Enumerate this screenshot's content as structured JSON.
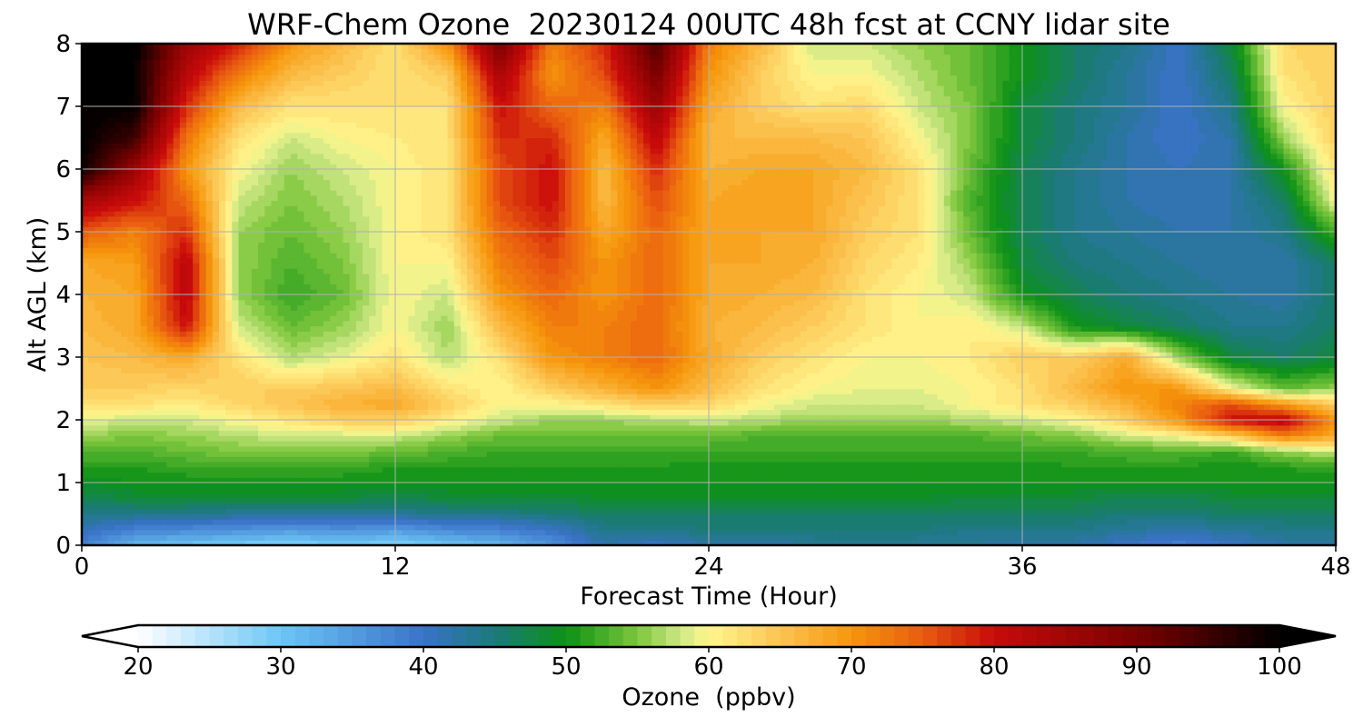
{
  "chart_data": {
    "type": "heatmap",
    "style": "filled-contour",
    "title": "WRF-Chem Ozone  20230124 00UTC 48h fcst at CCNY lidar site",
    "xlabel": "Forecast Time (Hour)",
    "ylabel": "Alt AGL (km)",
    "xlim": [
      0,
      48
    ],
    "ylim": [
      0,
      8
    ],
    "x_ticks": [
      0,
      12,
      24,
      36,
      48
    ],
    "y_ticks": [
      0,
      1,
      2,
      3,
      4,
      5,
      6,
      7,
      8
    ],
    "grid": true,
    "x_hours": [
      0,
      2,
      4,
      6,
      8,
      10,
      12,
      14,
      16,
      18,
      20,
      22,
      24,
      26,
      28,
      30,
      32,
      34,
      36,
      38,
      40,
      42,
      44,
      46,
      48
    ],
    "z_km": [
      0,
      0.25,
      0.5,
      0.75,
      1,
      1.25,
      1.5,
      1.75,
      2,
      2.25,
      2.5,
      3,
      3.5,
      4,
      4.5,
      5,
      5.5,
      6,
      6.5,
      7,
      7.5,
      8
    ],
    "ozone_ppbv": [
      [
        38,
        32,
        30,
        29,
        28,
        30,
        28,
        30,
        32,
        36,
        42,
        40,
        42,
        42,
        43,
        43,
        43,
        43,
        42,
        42,
        40,
        38,
        40,
        42,
        42
      ],
      [
        41,
        38,
        37,
        36,
        35,
        36,
        35,
        37,
        38,
        40,
        44,
        44,
        45,
        45,
        45,
        45,
        45,
        44,
        44,
        44,
        43,
        42,
        43,
        44,
        44
      ],
      [
        44,
        44,
        44,
        43,
        43,
        43,
        43,
        44,
        44,
        45,
        46,
        46,
        46,
        46,
        46,
        46,
        46,
        46,
        46,
        46,
        45,
        45,
        46,
        46,
        46
      ],
      [
        47,
        48,
        48,
        48,
        48,
        48,
        47,
        48,
        48,
        48,
        49,
        49,
        49,
        49,
        49,
        49,
        49,
        48,
        48,
        48,
        47,
        47,
        48,
        48,
        48
      ],
      [
        49,
        50,
        50,
        50,
        50,
        50,
        50,
        50,
        50,
        50,
        50,
        50,
        50,
        50,
        50,
        50,
        50,
        50,
        50,
        50,
        50,
        50,
        50,
        50,
        50
      ],
      [
        51,
        51,
        52,
        52,
        52,
        52,
        51,
        51,
        51,
        51,
        51,
        51,
        50,
        50,
        50,
        50,
        50,
        50,
        50,
        51,
        51,
        51,
        50,
        51,
        52
      ],
      [
        53,
        53,
        54,
        55,
        55,
        55,
        54,
        53,
        52,
        52,
        52,
        52,
        52,
        52,
        52,
        52,
        52,
        52,
        52,
        52,
        53,
        53,
        52,
        56,
        58
      ],
      [
        56,
        55,
        56,
        57,
        58,
        58,
        58,
        56,
        54,
        54,
        54,
        54,
        54,
        53,
        53,
        53,
        53,
        53,
        54,
        55,
        58,
        60,
        64,
        72,
        68
      ],
      [
        59,
        58,
        58,
        60,
        62,
        64,
        64,
        61,
        58,
        56,
        56,
        57,
        58,
        57,
        56,
        56,
        56,
        57,
        58,
        60,
        64,
        70,
        80,
        82,
        70
      ],
      [
        62,
        62,
        61,
        63,
        65,
        67,
        68,
        64,
        60,
        60,
        62,
        64,
        63,
        60,
        58,
        58,
        58,
        60,
        62,
        64,
        67,
        72,
        76,
        70,
        64
      ],
      [
        64,
        64,
        63,
        64,
        64,
        65,
        66,
        62,
        60,
        64,
        67,
        70,
        66,
        62,
        60,
        59,
        59,
        60,
        62,
        66,
        70,
        70,
        60,
        54,
        56
      ],
      [
        65,
        66,
        68,
        62,
        57,
        59,
        62,
        57,
        62,
        70,
        72,
        74,
        68,
        64,
        62,
        60,
        60,
        61,
        64,
        64,
        68,
        56,
        48,
        46,
        48
      ],
      [
        66,
        68,
        80,
        58,
        54,
        56,
        60,
        56,
        66,
        72,
        72,
        74,
        67,
        66,
        64,
        62,
        60,
        61,
        58,
        50,
        48,
        46,
        44,
        44,
        46
      ],
      [
        67,
        68,
        82,
        56,
        52,
        54,
        60,
        58,
        70,
        74,
        70,
        74,
        68,
        67,
        66,
        62,
        60,
        58,
        50,
        47,
        45,
        44,
        43,
        42,
        46
      ],
      [
        68,
        69,
        82,
        56,
        53,
        55,
        60,
        60,
        72,
        76,
        70,
        74,
        68,
        68,
        67,
        63,
        61,
        56,
        48,
        45,
        44,
        43,
        42,
        42,
        46
      ],
      [
        75,
        72,
        78,
        56,
        54,
        56,
        60,
        62,
        74,
        78,
        68,
        74,
        68,
        68,
        68,
        64,
        62,
        54,
        47,
        44,
        43,
        42,
        42,
        44,
        52
      ],
      [
        84,
        80,
        74,
        58,
        55,
        57,
        60,
        62,
        76,
        80,
        66,
        76,
        68,
        69,
        68,
        65,
        62,
        53,
        47,
        44,
        42,
        41,
        42,
        46,
        60
      ],
      [
        99,
        86,
        70,
        60,
        56,
        58,
        60,
        62,
        76,
        80,
        66,
        78,
        67,
        68,
        68,
        66,
        62,
        54,
        47,
        44,
        42,
        41,
        42,
        50,
        62
      ],
      [
        100,
        95,
        73,
        62,
        58,
        60,
        61,
        62,
        78,
        78,
        68,
        82,
        66,
        66,
        66,
        65,
        60,
        55,
        48,
        45,
        42,
        40,
        42,
        56,
        64
      ],
      [
        100,
        100,
        78,
        66,
        62,
        62,
        62,
        62,
        80,
        74,
        72,
        86,
        68,
        64,
        62,
        63,
        58,
        55,
        48,
        45,
        43,
        40,
        44,
        60,
        64
      ],
      [
        100,
        100,
        82,
        72,
        66,
        64,
        62,
        64,
        84,
        70,
        76,
        90,
        70,
        64,
        60,
        60,
        57,
        54,
        50,
        46,
        43,
        40,
        46,
        62,
        64
      ],
      [
        100,
        100,
        86,
        78,
        70,
        66,
        62,
        70,
        90,
        72,
        78,
        94,
        72,
        66,
        58,
        58,
        56,
        54,
        50,
        46,
        44,
        40,
        48,
        63,
        64
      ]
    ],
    "colorbar": {
      "label": "Ozone  (ppbv)",
      "min": 20,
      "max": 100,
      "step": 1,
      "extend": "both",
      "ticks": [
        20,
        30,
        40,
        50,
        60,
        70,
        80,
        90,
        100
      ],
      "colormap": [
        [
          20,
          "#ffffff"
        ],
        [
          30,
          "#6dc6f5"
        ],
        [
          40,
          "#3a72c8"
        ],
        [
          45,
          "#1c7a7a"
        ],
        [
          50,
          "#0c9116"
        ],
        [
          55,
          "#7dc63c"
        ],
        [
          58,
          "#cde885"
        ],
        [
          60,
          "#fff68e"
        ],
        [
          65,
          "#fcc452"
        ],
        [
          70,
          "#f6960c"
        ],
        [
          75,
          "#e95c10"
        ],
        [
          80,
          "#c90a0a"
        ],
        [
          90,
          "#7a0000"
        ],
        [
          100,
          "#000000"
        ]
      ]
    }
  }
}
